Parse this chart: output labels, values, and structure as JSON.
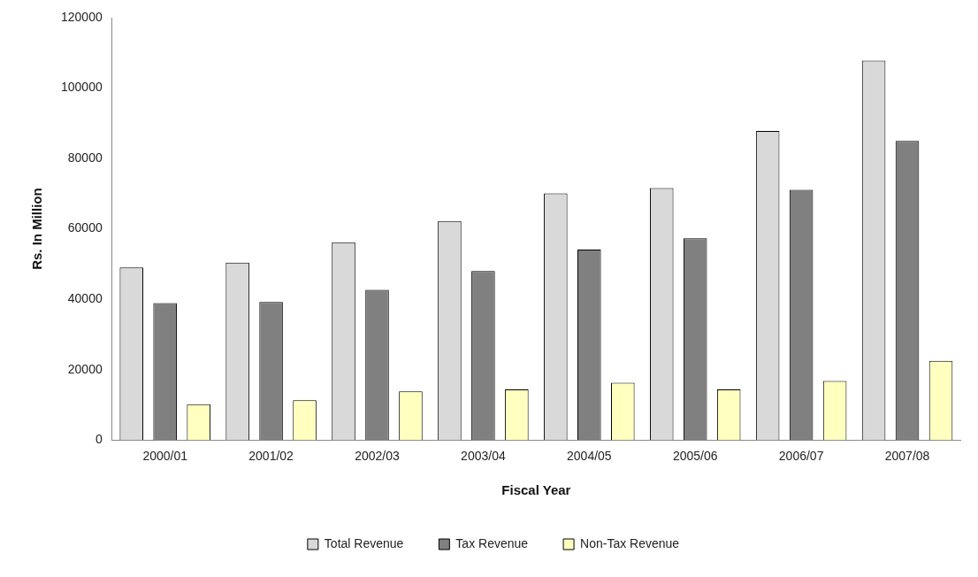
{
  "chart_data": {
    "type": "bar",
    "xlabel": "Fiscal Year",
    "ylabel": "Rs. In Million",
    "categories": [
      "2000/01",
      "2001/02",
      "2002/03",
      "2003/04",
      "2004/05",
      "2005/06",
      "2006/07",
      "2007/08"
    ],
    "series": [
      {
        "name": "Total Revenue",
        "color": "#d9d9d9",
        "values": [
          49000,
          50400,
          56200,
          62200,
          70100,
          71600,
          87800,
          107800
        ]
      },
      {
        "name": "Tax Revenue",
        "color": "#808080",
        "values": [
          38900,
          39200,
          42700,
          48000,
          54100,
          57300,
          71100,
          85000
        ]
      },
      {
        "name": "Non-Tax Revenue",
        "color": "#ffffc0",
        "values": [
          10200,
          11300,
          13800,
          14400,
          16300,
          14400,
          16800,
          22500
        ]
      }
    ],
    "ylim": [
      0,
      120000
    ],
    "yticks": [
      0,
      20000,
      40000,
      60000,
      80000,
      100000,
      120000
    ],
    "grid": false,
    "legend": "bottom"
  }
}
